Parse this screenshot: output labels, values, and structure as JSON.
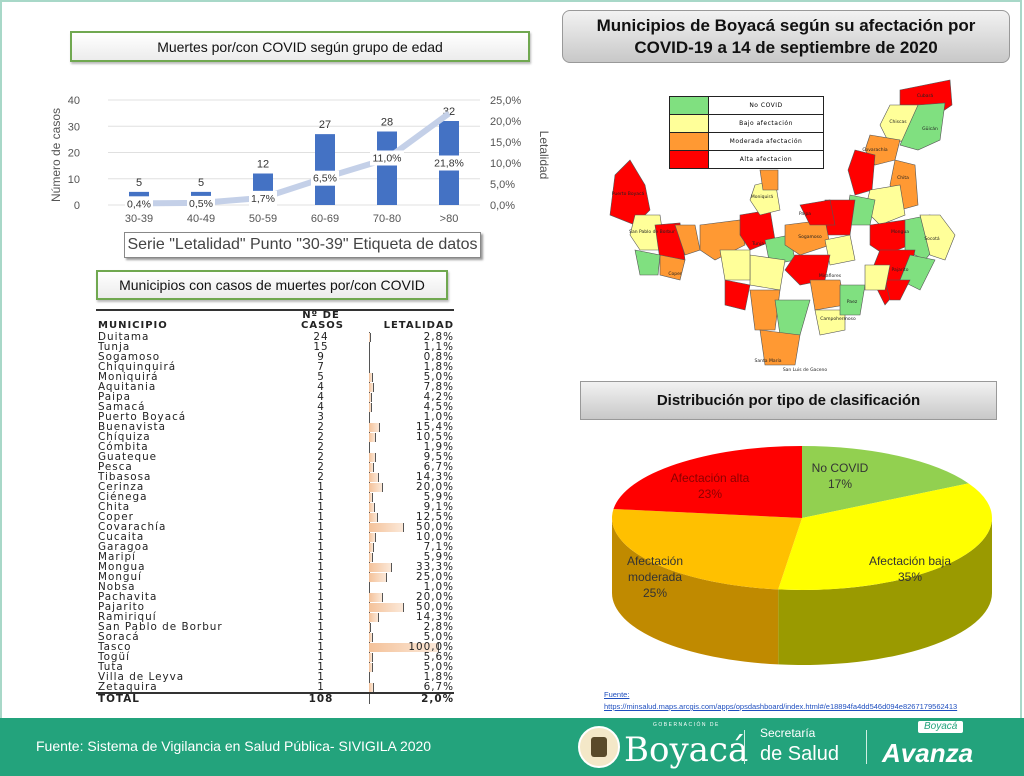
{
  "age_chart": {
    "title": "Muertes por/con COVID según grupo de edad",
    "tooltip": "Serie \"Letalidad\" Punto \"30-39\" Etiqueta de datos"
  },
  "chart_data": [
    {
      "type": "bar",
      "title": "Muertes por/con COVID según grupo de edad",
      "categories": [
        "30-39",
        "40-49",
        "50-59",
        "60-69",
        "70-80",
        ">80"
      ],
      "series": [
        {
          "name": "Número de casos",
          "type": "bar",
          "axis": "left",
          "values": [
            5,
            5,
            12,
            27,
            28,
            32
          ],
          "labels": [
            "5",
            "5",
            "12",
            "27",
            "28",
            "32"
          ]
        },
        {
          "name": "Letalidad",
          "type": "line",
          "axis": "right",
          "values": [
            0.4,
            0.5,
            1.7,
            6.5,
            11.0,
            21.8
          ],
          "labels": [
            "0,4%",
            "0,5%",
            "1,7%",
            "6,5%",
            "11,0%",
            "21,8%"
          ]
        }
      ],
      "ylabel": "Número de casos",
      "y2label": "Letalidad",
      "ylim": [
        0,
        40
      ],
      "y2lim": [
        0,
        25
      ],
      "yticks": [
        "0",
        "10",
        "20",
        "30",
        "40"
      ],
      "y2ticks": [
        "0,0%",
        "5,0%",
        "10,0%",
        "15,0%",
        "20,0%",
        "25,0%"
      ],
      "grid": true
    },
    {
      "type": "pie",
      "title": "Distribución por tipo de clasificación",
      "categories": [
        "No COVID",
        "Afectación baja",
        "Afectación moderada",
        "Afectación alta"
      ],
      "values": [
        17,
        35,
        25,
        23
      ],
      "labels": [
        "17%",
        "35%",
        "25%",
        "23%"
      ],
      "colors": [
        "#92d050",
        "#ffff00",
        "#ffc000",
        "#ff0000"
      ]
    },
    {
      "type": "table",
      "title": "Municipios con casos de muertes por/con COVID",
      "columns": [
        "MUNICIPIO",
        "Nº DE CASOS",
        "LETALIDAD"
      ],
      "rows": [
        [
          "Duitama",
          24,
          "2,8%"
        ],
        [
          "Tunja",
          15,
          "1,1%"
        ],
        [
          "Sogamoso",
          9,
          "0,8%"
        ],
        [
          "Chiquinquirá",
          7,
          "1,8%"
        ],
        [
          "Moniquirá",
          5,
          "5,0%"
        ],
        [
          "Aquitania",
          4,
          "7,8%"
        ],
        [
          "Paipa",
          4,
          "4,2%"
        ],
        [
          "Samacá",
          4,
          "4,5%"
        ],
        [
          "Puerto Boyacá",
          3,
          "1,0%"
        ],
        [
          "Buenavista",
          2,
          "15,4%"
        ],
        [
          "Chíquiza",
          2,
          "10,5%"
        ],
        [
          "Cómbita",
          2,
          "1,9%"
        ],
        [
          "Guateque",
          2,
          "9,5%"
        ],
        [
          "Pesca",
          2,
          "6,7%"
        ],
        [
          "Tibasosa",
          2,
          "14,3%"
        ],
        [
          "Cerinza",
          1,
          "20,0%"
        ],
        [
          "Ciénega",
          1,
          "5,9%"
        ],
        [
          "Chita",
          1,
          "9,1%"
        ],
        [
          "Coper",
          1,
          "12,5%"
        ],
        [
          "Covarachía",
          1,
          "50,0%"
        ],
        [
          "Cucaita",
          1,
          "10,0%"
        ],
        [
          "Garagoa",
          1,
          "7,1%"
        ],
        [
          "Maripí",
          1,
          "5,9%"
        ],
        [
          "Mongua",
          1,
          "33,3%"
        ],
        [
          "Monguí",
          1,
          "25,0%"
        ],
        [
          "Nobsa",
          1,
          "1,0%"
        ],
        [
          "Pachavita",
          1,
          "20,0%"
        ],
        [
          "Pajarito",
          1,
          "50,0%"
        ],
        [
          "Ramiriquí",
          1,
          "14,3%"
        ],
        [
          "San Pablo de Borbur",
          1,
          "2,8%"
        ],
        [
          "Soracá",
          1,
          "5,0%"
        ],
        [
          "Tasco",
          1,
          "100,0%"
        ],
        [
          "Togüí",
          1,
          "5,6%"
        ],
        [
          "Tuta",
          1,
          "5,0%"
        ],
        [
          "Villa de Leyva",
          1,
          "1,8%"
        ],
        [
          "Zetaquira",
          1,
          "6,7%"
        ]
      ],
      "total": [
        "TOTAL",
        108,
        "2,0%"
      ]
    }
  ],
  "table": {
    "title": "Municipios con casos de muertes por/con COVID",
    "col_municipio": "MUNICIPIO",
    "col_casos_1": "Nº DE",
    "col_casos_2": "CASOS",
    "col_letalidad": "LETALIDAD"
  },
  "map": {
    "title": "Municipios de Boyacá según su afectación por COVID-19 a 14 de septiembre de 2020",
    "title_line1": "Municipios de Boyacá según su afectación por",
    "title_line2": "COVID-19 a 14 de septiembre de 2020",
    "legend": [
      {
        "label": "No COVID",
        "color": "#80e080"
      },
      {
        "label": "Bajo afectación",
        "color": "#ffff99"
      },
      {
        "label": "Moderada afectación",
        "color": "#ff9933"
      },
      {
        "label": "Alta afectacion",
        "color": "#ff0000"
      }
    ],
    "places": [
      "Cubará",
      "Chiscas",
      "Güicán",
      "Covarachía",
      "Chita",
      "Socotá",
      "Puerto Boyacá",
      "San Pablo de Borbur",
      "Coper",
      "Moniquirá",
      "Paipa",
      "Tunja",
      "Sogamoso",
      "Mongua",
      "Pajarito",
      "Miraflores",
      "Paez",
      "Campohermoso",
      "Santa María",
      "San Luis de Gaceno"
    ]
  },
  "pie": {
    "title": "Distribución por tipo de clasificación"
  },
  "source": {
    "label": "Fuente:",
    "url": "https://minsalud.maps.arcgis.com/apps/opsdashboard/index.html#/e18894fa4dd546d094e8267179562413"
  },
  "footer": {
    "source": "Fuente: Sistema de Vigilancia en Salud Pública- SIVIGILA 2020",
    "gob": "GOBERNACIÓN DE",
    "boyaca": "Boyacá",
    "sec1": "Secretaría",
    "sec2": "de Salud",
    "boyaca_small": "Boyacá",
    "avanza": "Avanza"
  }
}
